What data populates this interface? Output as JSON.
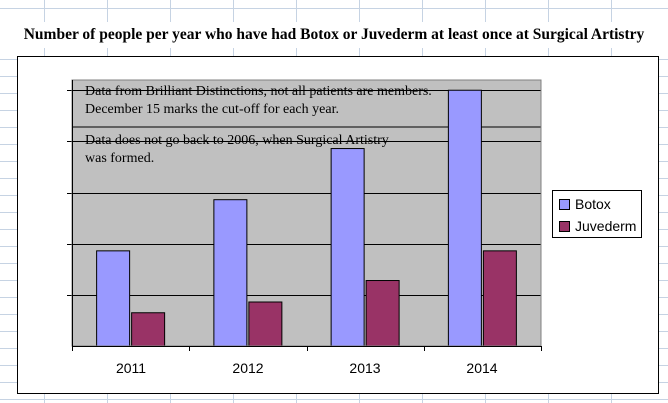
{
  "chart_data": {
    "type": "bar",
    "title": "Number of people per year who have had Botox or Juvederm at least once at Surgical Artistry",
    "categories": [
      "2011",
      "2012",
      "2013",
      "2014"
    ],
    "series": [
      {
        "name": "Botox",
        "color": "#9999ff",
        "values": [
          1.86,
          2.86,
          3.86,
          5.0
        ]
      },
      {
        "name": "Juvederm",
        "color": "#993366",
        "values": [
          0.65,
          0.86,
          1.28,
          1.86
        ]
      }
    ],
    "ylim": [
      0,
      5.2
    ],
    "grid": true,
    "legend_position": "right",
    "annotations": [
      "Data from Brilliant Distinctions, not all patients are members.",
      "December 15 marks the cut-off for each year.",
      "Data does not go back to 2006, when Surgical Artistry",
      "was formed."
    ]
  }
}
